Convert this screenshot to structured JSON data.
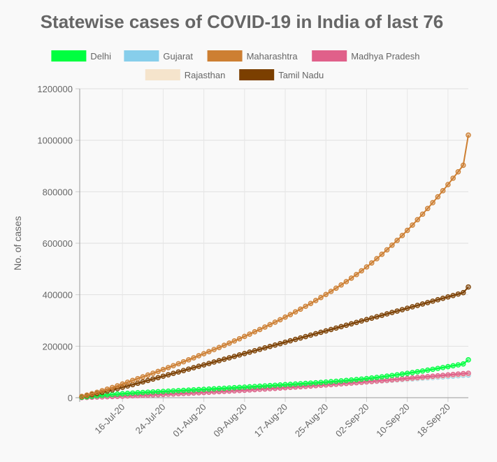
{
  "chart_data": {
    "type": "line",
    "title": "Statewise cases of COVID-19 in India of last 76",
    "xlabel": "",
    "ylabel": "No. of cases",
    "ylim": [
      0,
      1200000
    ],
    "y_ticks": [
      "0",
      "200000",
      "400000",
      "600000",
      "800000",
      "1000000",
      "1200000"
    ],
    "grid": true,
    "legend_position": "top",
    "x": [
      "08-Jul-20",
      "09-Jul-20",
      "10-Jul-20",
      "11-Jul-20",
      "12-Jul-20",
      "13-Jul-20",
      "14-Jul-20",
      "15-Jul-20",
      "16-Jul-20",
      "17-Jul-20",
      "18-Jul-20",
      "19-Jul-20",
      "20-Jul-20",
      "21-Jul-20",
      "22-Jul-20",
      "23-Jul-20",
      "24-Jul-20",
      "25-Jul-20",
      "26-Jul-20",
      "27-Jul-20",
      "28-Jul-20",
      "29-Jul-20",
      "30-Jul-20",
      "31-Jul-20",
      "01-Aug-20",
      "02-Aug-20",
      "03-Aug-20",
      "04-Aug-20",
      "05-Aug-20",
      "06-Aug-20",
      "07-Aug-20",
      "08-Aug-20",
      "09-Aug-20",
      "10-Aug-20",
      "11-Aug-20",
      "12-Aug-20",
      "13-Aug-20",
      "14-Aug-20",
      "15-Aug-20",
      "16-Aug-20",
      "17-Aug-20",
      "18-Aug-20",
      "19-Aug-20",
      "20-Aug-20",
      "21-Aug-20",
      "22-Aug-20",
      "23-Aug-20",
      "24-Aug-20",
      "25-Aug-20",
      "26-Aug-20",
      "27-Aug-20",
      "28-Aug-20",
      "29-Aug-20",
      "30-Aug-20",
      "31-Aug-20",
      "01-Sep-20",
      "02-Sep-20",
      "03-Sep-20",
      "04-Sep-20",
      "05-Sep-20",
      "06-Sep-20",
      "07-Sep-20",
      "08-Sep-20",
      "09-Sep-20",
      "10-Sep-20",
      "11-Sep-20",
      "12-Sep-20",
      "13-Sep-20",
      "14-Sep-20",
      "15-Sep-20",
      "16-Sep-20",
      "17-Sep-20",
      "18-Sep-20",
      "19-Sep-20",
      "20-Sep-20",
      "21-Sep-20",
      "22-Sep-20"
    ],
    "x_ticks": [
      "16-Jul-20",
      "24-Jul-20",
      "01-Aug-20",
      "09-Aug-20",
      "17-Aug-20",
      "25-Aug-20",
      "02-Sep-20",
      "10-Sep-20",
      "18-Sep-20"
    ],
    "series": [
      {
        "name": "Delhi",
        "color": "#00ff40",
        "values": [
          1800,
          3800,
          5700,
          7600,
          9300,
          11000,
          12600,
          14100,
          15500,
          16800,
          18000,
          19200,
          20300,
          21400,
          22400,
          23400,
          24400,
          25400,
          26400,
          27400,
          28400,
          29400,
          30400,
          31400,
          32400,
          33400,
          34500,
          35500,
          36600,
          37700,
          38800,
          39900,
          41000,
          42200,
          43400,
          44600,
          45800,
          47000,
          48200,
          49400,
          50600,
          51800,
          53000,
          54200,
          55400,
          56700,
          58000,
          59300,
          60700,
          62200,
          63700,
          65300,
          66900,
          68600,
          70400,
          72300,
          74300,
          76400,
          78700,
          81100,
          83600,
          86200,
          88900,
          91700,
          94600,
          97600,
          100700,
          103800,
          107000,
          110300,
          113700,
          117100,
          120600,
          124100,
          127600,
          131100,
          147000
        ]
      },
      {
        "name": "Gujarat",
        "color": "#87ceeb",
        "values": [
          800,
          1600,
          2400,
          3200,
          4000,
          4800,
          5600,
          6400,
          7200,
          8000,
          8800,
          9700,
          10600,
          11500,
          12400,
          13300,
          14200,
          15100,
          16000,
          17000,
          18000,
          19000,
          20000,
          21000,
          22000,
          23000,
          24100,
          25200,
          26300,
          27400,
          28500,
          29600,
          30700,
          31800,
          32900,
          34100,
          35300,
          36500,
          37700,
          38900,
          40100,
          41300,
          42500,
          43700,
          45000,
          46300,
          47600,
          48900,
          50200,
          51500,
          52800,
          54100,
          55400,
          56700,
          58000,
          59300,
          60600,
          61900,
          63200,
          64500,
          65900,
          67300,
          68700,
          70100,
          71500,
          72900,
          74300,
          75700,
          77100,
          78500,
          79900,
          81300,
          82700,
          84100,
          85500,
          86900,
          88000
        ]
      },
      {
        "name": "Maharashtra",
        "color": "#cd7f32",
        "values": [
          5000,
          10000,
          15500,
          21000,
          27000,
          33000,
          39500,
          46000,
          53000,
          60000,
          67000,
          74000,
          81000,
          88000,
          95000,
          102000,
          109500,
          117000,
          124500,
          132000,
          139500,
          147000,
          155000,
          163000,
          171000,
          179000,
          187000,
          195000,
          203500,
          212000,
          220500,
          229000,
          238000,
          247000,
          256000,
          265000,
          274500,
          284000,
          293500,
          303000,
          313000,
          323000,
          333500,
          344000,
          355000,
          366000,
          377500,
          389000,
          401000,
          413000,
          425500,
          438000,
          451000,
          464500,
          478500,
          493000,
          508000,
          523500,
          540000,
          557000,
          574500,
          592500,
          611000,
          630000,
          650000,
          670500,
          691500,
          713000,
          735000,
          757500,
          780500,
          804000,
          828000,
          852500,
          877500,
          903000,
          1020000
        ]
      },
      {
        "name": "Madhya Pradesh",
        "color": "#e0608a",
        "values": [
          600,
          1200,
          1800,
          2400,
          3100,
          3800,
          4500,
          5200,
          6000,
          6800,
          7600,
          8400,
          9200,
          10000,
          10900,
          11800,
          12700,
          13600,
          14500,
          15400,
          16300,
          17300,
          18300,
          19300,
          20300,
          21300,
          22400,
          23500,
          24600,
          25700,
          26800,
          27900,
          29000,
          30200,
          31400,
          32600,
          33800,
          35000,
          36200,
          37500,
          38800,
          40100,
          41400,
          42700,
          44000,
          45400,
          46800,
          48200,
          49600,
          51000,
          52500,
          54000,
          55500,
          57000,
          58600,
          60200,
          61800,
          63400,
          65000,
          66600,
          68200,
          69800,
          71400,
          73000,
          74700,
          76400,
          78100,
          79800,
          81500,
          83200,
          84900,
          86600,
          88300,
          90000,
          91700,
          93400,
          95000
        ]
      },
      {
        "name": "Rajasthan",
        "color": "#f5e4cc",
        "values": [
          700,
          1400,
          2100,
          2800,
          3500,
          4200,
          5000,
          5800,
          6600,
          7400,
          8200,
          9000,
          9800,
          10700,
          11600,
          12500,
          13400,
          14300,
          15200,
          16100,
          17000,
          18000,
          19000,
          20000,
          21000,
          22000,
          23000,
          24000,
          25100,
          26200,
          27300,
          28400,
          29500,
          30600,
          31800,
          33000,
          34200,
          35400,
          36600,
          37800,
          39000,
          40200,
          41500,
          42800,
          44100,
          45400,
          46700,
          48000,
          49300,
          50700,
          52100,
          53500,
          54900,
          56300,
          57700,
          59100,
          60500,
          62000,
          63500,
          65000,
          66500,
          68000,
          69500,
          71000,
          72500,
          74100,
          75700,
          77300,
          78900,
          80500,
          82100,
          83700,
          85300,
          86900,
          88500,
          90100,
          92000
        ]
      },
      {
        "name": "Tamil Nadu",
        "color": "#7b3f00",
        "values": [
          4000,
          8000,
          12200,
          16500,
          21000,
          25500,
          30500,
          35500,
          40500,
          45500,
          50800,
          56000,
          61500,
          67000,
          72500,
          78000,
          83500,
          89000,
          94500,
          100000,
          105500,
          111000,
          116500,
          122000,
          127500,
          133000,
          138500,
          144000,
          149500,
          155000,
          160500,
          166000,
          171500,
          177000,
          182500,
          188000,
          193500,
          199000,
          204500,
          210000,
          215500,
          221000,
          226500,
          232000,
          237500,
          243000,
          248500,
          254000,
          259500,
          265000,
          270500,
          276000,
          281500,
          287000,
          292500,
          298000,
          303500,
          309000,
          314500,
          320000,
          325500,
          331000,
          336500,
          342000,
          347500,
          353000,
          358500,
          364000,
          369500,
          375000,
          380500,
          386000,
          391500,
          397000,
          402500,
          408000,
          430000
        ]
      }
    ]
  }
}
